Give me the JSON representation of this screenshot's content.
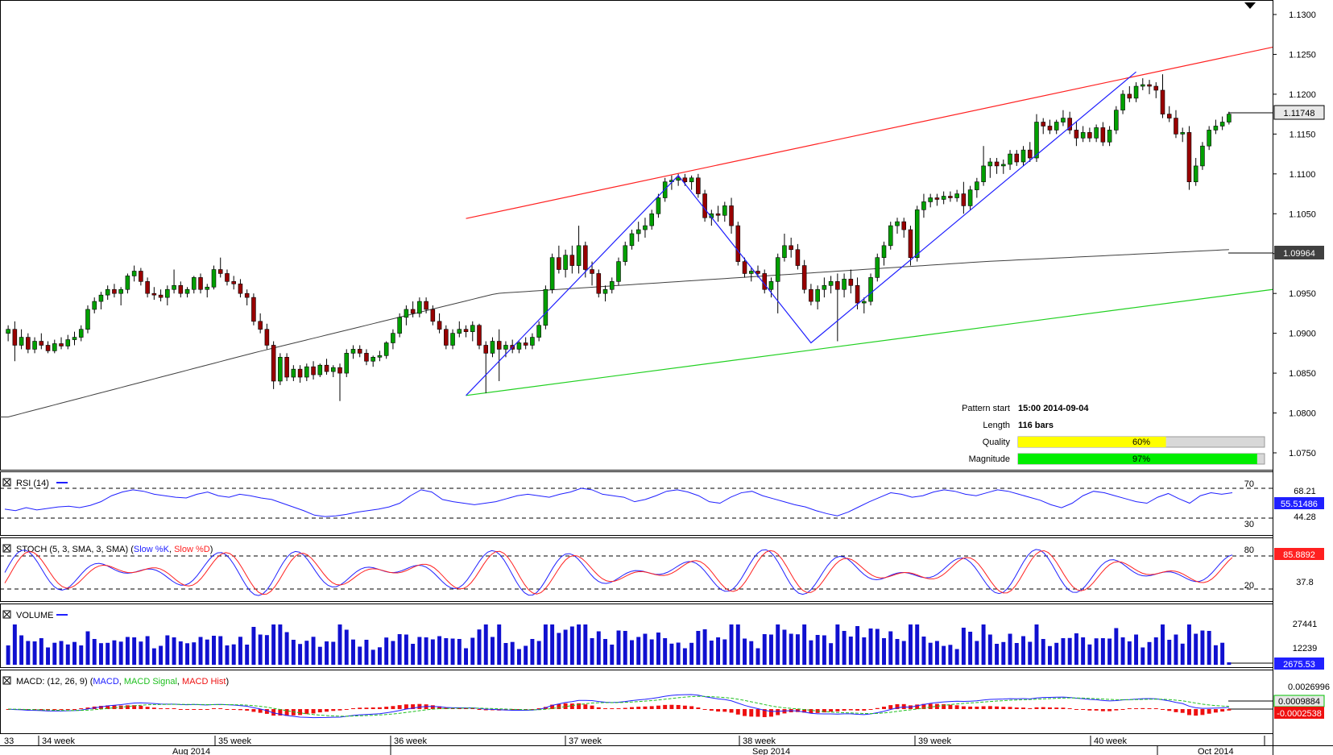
{
  "colors": {
    "bull": "#00a000",
    "bear": "#990000",
    "channel_top": "#ff2020",
    "channel_bottom": "#20d020",
    "zigzag": "#2020ff",
    "ma": "#404040",
    "rsi": "#2020ff",
    "stoch_k": "#2020ff",
    "stoch_d": "#ff2020",
    "volume": "#1010d0",
    "macd": "#2020ff",
    "macd_signal": "#20c020",
    "macd_hist": "#ee1010",
    "quality": "#ffff00",
    "magnitude": "#00ee00"
  },
  "price_axis": {
    "ticks": [
      "1.1300",
      "1.1250",
      "1.1200",
      "1.1150",
      "1.1100",
      "1.1050",
      "1.1000",
      "1.0950",
      "1.0900",
      "1.0850",
      "1.0800",
      "1.0750"
    ],
    "current_price": "1.11748",
    "ma_value": "1.09964"
  },
  "pattern_info": {
    "start_label": "Pattern start",
    "start_value": "15:00 2014-09-04",
    "length_label": "Length",
    "length_value": "116 bars",
    "quality_label": "Quality",
    "quality_value": "60%",
    "quality_fraction": 0.6,
    "magnitude_label": "Magnitude",
    "magnitude_value": "97%",
    "magnitude_fraction": 0.97
  },
  "rsi": {
    "title": "RSI (14)",
    "levels": [
      "70",
      "30"
    ],
    "ticks": [
      "68.21",
      "44.28"
    ],
    "current": "55.51486"
  },
  "stoch": {
    "title_main": "STOCH (5, 3, SMA, 3, SMA)",
    "title_k": "Slow %K",
    "title_d": "Slow %D",
    "levels": [
      "80",
      "20"
    ],
    "ticks": [
      "37.8"
    ],
    "current": "85.8892"
  },
  "volume": {
    "title": "VOLUME",
    "ticks": [
      "27441",
      "12239"
    ],
    "current": "2675.53"
  },
  "macd": {
    "title_main": "MACD: (12, 26, 9)",
    "title_macd": "MACD",
    "title_signal": "MACD Signal",
    "title_hist": "MACD Hist",
    "ticks": [
      "0.0026996"
    ],
    "current_macd": "0.0009884",
    "current_hist": "-0.0002538"
  },
  "time_axis": {
    "weeks": [
      "33",
      "34 week",
      "35 week",
      "36 week",
      "37 week",
      "38 week",
      "39 week",
      "40 week"
    ],
    "months": [
      "Aug 2014",
      "Sep 2014",
      "Oct 2014"
    ]
  },
  "chart_data": {
    "type": "candlestick",
    "symbol_timeframe_note": "",
    "y_range": [
      1.0715,
      1.1315
    ],
    "candles": [
      [
        1.09,
        1.091,
        1.089,
        1.0905
      ],
      [
        1.0905,
        1.0915,
        1.0865,
        1.0885
      ],
      [
        1.0885,
        1.0905,
        1.088,
        1.0895
      ],
      [
        1.0895,
        1.09,
        1.0875,
        1.088
      ],
      [
        1.088,
        1.0895,
        1.0875,
        1.089
      ],
      [
        1.089,
        1.09,
        1.088,
        1.0885
      ],
      [
        1.0885,
        1.089,
        1.0875,
        1.0878
      ],
      [
        1.0878,
        1.0892,
        1.0875,
        1.0887
      ],
      [
        1.0887,
        1.0895,
        1.088,
        1.0884
      ],
      [
        1.0884,
        1.0898,
        1.088,
        1.0892
      ],
      [
        1.0892,
        1.0902,
        1.0885,
        1.0895
      ],
      [
        1.0895,
        1.091,
        1.089,
        1.0905
      ],
      [
        1.0905,
        1.0935,
        1.09,
        1.093
      ],
      [
        1.093,
        1.0945,
        1.0925,
        1.094
      ],
      [
        1.094,
        1.0952,
        1.093,
        1.0948
      ],
      [
        1.0948,
        1.096,
        1.0942,
        1.0955
      ],
      [
        1.0955,
        1.0962,
        1.0945,
        1.095
      ],
      [
        1.095,
        1.0958,
        1.0935,
        1.0955
      ],
      [
        1.0955,
        1.0975,
        1.095,
        1.0972
      ],
      [
        1.0972,
        1.0985,
        1.0965,
        1.0978
      ],
      [
        1.0978,
        1.0982,
        1.096,
        1.0965
      ],
      [
        1.0965,
        1.097,
        1.0945,
        1.095
      ],
      [
        1.095,
        1.0958,
        1.0942,
        1.0948
      ],
      [
        1.0948,
        1.0955,
        1.094,
        1.0945
      ],
      [
        1.0945,
        1.096,
        1.0935,
        1.0955
      ],
      [
        1.0955,
        1.098,
        1.095,
        1.096
      ],
      [
        1.096,
        1.0965,
        1.0945,
        1.095
      ],
      [
        1.095,
        1.0958,
        1.0945,
        1.0955
      ],
      [
        1.0955,
        1.0972,
        1.095,
        1.097
      ],
      [
        1.097,
        1.0975,
        1.095,
        1.0955
      ],
      [
        1.0955,
        1.0962,
        1.0945,
        1.0958
      ],
      [
        1.0958,
        1.0985,
        1.0955,
        1.098
      ],
      [
        1.098,
        1.0995,
        1.097,
        1.0975
      ],
      [
        1.0975,
        1.098,
        1.096,
        1.0965
      ],
      [
        1.0965,
        1.0972,
        1.0955,
        1.0962
      ],
      [
        1.0962,
        1.0968,
        1.0945,
        1.095
      ],
      [
        1.095,
        1.0955,
        1.0935,
        1.0945
      ],
      [
        1.0945,
        1.095,
        1.091,
        1.0915
      ],
      [
        1.0915,
        1.0925,
        1.09,
        1.0905
      ],
      [
        1.0905,
        1.0912,
        1.088,
        1.0885
      ],
      [
        1.0885,
        1.089,
        1.083,
        1.084
      ],
      [
        1.084,
        1.0875,
        1.0835,
        1.087
      ],
      [
        1.087,
        1.0875,
        1.084,
        1.0845
      ],
      [
        1.0845,
        1.086,
        1.084,
        1.0855
      ],
      [
        1.0855,
        1.086,
        1.0838,
        1.0845
      ],
      [
        1.0845,
        1.0862,
        1.084,
        1.0858
      ],
      [
        1.0858,
        1.0865,
        1.0842,
        1.0848
      ],
      [
        1.0848,
        1.0862,
        1.0845,
        1.086
      ],
      [
        1.086,
        1.0868,
        1.0848,
        1.0852
      ],
      [
        1.0852,
        1.086,
        1.0845,
        1.0857
      ],
      [
        1.0857,
        1.0862,
        1.0815,
        1.085
      ],
      [
        1.085,
        1.088,
        1.0845,
        1.0875
      ],
      [
        1.0875,
        1.0885,
        1.0868,
        1.088
      ],
      [
        1.088,
        1.0885,
        1.087,
        1.0875
      ],
      [
        1.0875,
        1.088,
        1.086,
        1.0865
      ],
      [
        1.0865,
        1.0872,
        1.0858,
        1.087
      ],
      [
        1.087,
        1.0878,
        1.0865,
        1.0872
      ],
      [
        1.0872,
        1.089,
        1.0868,
        1.0888
      ],
      [
        1.0888,
        1.0905,
        1.088,
        1.09
      ],
      [
        1.09,
        1.0925,
        1.0895,
        1.092
      ],
      [
        1.092,
        1.0935,
        1.091,
        1.093
      ],
      [
        1.093,
        1.094,
        1.092,
        1.0925
      ],
      [
        1.0925,
        1.0945,
        1.092,
        1.094
      ],
      [
        1.094,
        1.0945,
        1.0925,
        1.093
      ],
      [
        1.093,
        1.0935,
        1.091,
        1.0915
      ],
      [
        1.0915,
        1.0925,
        1.09,
        1.0905
      ],
      [
        1.0905,
        1.091,
        1.088,
        1.0885
      ],
      [
        1.0885,
        1.0905,
        1.088,
        1.09
      ],
      [
        1.09,
        1.0915,
        1.0895,
        1.0905
      ],
      [
        1.0905,
        1.091,
        1.0895,
        1.0902
      ],
      [
        1.0902,
        1.0915,
        1.089,
        1.091
      ],
      [
        1.091,
        1.0912,
        1.088,
        1.0885
      ],
      [
        1.0885,
        1.089,
        1.0825,
        1.0875
      ],
      [
        1.0875,
        1.0895,
        1.087,
        1.089
      ],
      [
        1.089,
        1.0905,
        1.084,
        1.088
      ],
      [
        1.088,
        1.089,
        1.087,
        1.0885
      ],
      [
        1.0885,
        1.0892,
        1.0875,
        1.088
      ],
      [
        1.088,
        1.089,
        1.0875,
        1.0888
      ],
      [
        1.0888,
        1.0895,
        1.088,
        1.0885
      ],
      [
        1.0885,
        1.09,
        1.088,
        1.0895
      ],
      [
        1.0895,
        1.0915,
        1.089,
        1.091
      ],
      [
        1.091,
        1.096,
        1.0905,
        1.0955
      ],
      [
        1.0955,
        1.1,
        1.095,
        1.0995
      ],
      [
        1.0995,
        1.101,
        1.0975,
        1.098
      ],
      [
        1.098,
        1.1005,
        1.097,
        1.0998
      ],
      [
        1.0998,
        1.101,
        1.0975,
        1.0985
      ],
      [
        1.0985,
        1.1035,
        1.0975,
        1.101
      ],
      [
        1.101,
        1.1015,
        1.097,
        1.098
      ],
      [
        1.098,
        1.099,
        1.096,
        1.0975
      ],
      [
        1.0975,
        1.098,
        1.0945,
        1.095
      ],
      [
        1.095,
        1.096,
        1.094,
        1.0955
      ],
      [
        1.0955,
        1.097,
        1.095,
        1.0965
      ],
      [
        1.0965,
        1.0995,
        1.096,
        1.099
      ],
      [
        1.099,
        1.1015,
        1.0985,
        1.101
      ],
      [
        1.101,
        1.103,
        1.1005,
        1.1025
      ],
      [
        1.1025,
        1.104,
        1.1015,
        1.103
      ],
      [
        1.103,
        1.1045,
        1.102,
        1.1035
      ],
      [
        1.1035,
        1.1055,
        1.103,
        1.105
      ],
      [
        1.105,
        1.1075,
        1.1045,
        1.107
      ],
      [
        1.107,
        1.1095,
        1.1065,
        1.109
      ],
      [
        1.109,
        1.1098,
        1.108,
        1.1092
      ],
      [
        1.1092,
        1.11,
        1.1085,
        1.1095
      ],
      [
        1.1095,
        1.11,
        1.1085,
        1.109
      ],
      [
        1.109,
        1.1098,
        1.108,
        1.1095
      ],
      [
        1.1095,
        1.11,
        1.107,
        1.1075
      ],
      [
        1.1075,
        1.108,
        1.104,
        1.1045
      ],
      [
        1.1045,
        1.1055,
        1.1035,
        1.105
      ],
      [
        1.105,
        1.106,
        1.104,
        1.1048
      ],
      [
        1.1048,
        1.1065,
        1.104,
        1.106
      ],
      [
        1.106,
        1.107,
        1.1025,
        1.1035
      ],
      [
        1.1035,
        1.104,
        1.0985,
        1.099
      ],
      [
        1.099,
        1.0995,
        1.097,
        1.0975
      ],
      [
        1.0975,
        1.0982,
        1.0965,
        1.0978
      ],
      [
        1.0978,
        1.0985,
        1.097,
        1.0975
      ],
      [
        1.0975,
        1.098,
        1.095,
        1.0955
      ],
      [
        1.0955,
        1.097,
        1.0945,
        1.0965
      ],
      [
        1.0965,
        1.1,
        1.0925,
        1.0995
      ],
      [
        1.0995,
        1.1025,
        1.099,
        1.101
      ],
      [
        1.101,
        1.102,
        1.0995,
        1.1005
      ],
      [
        1.1005,
        1.1012,
        1.098,
        1.0985
      ],
      [
        1.0985,
        1.0992,
        1.095,
        1.0955
      ],
      [
        1.0955,
        1.0962,
        1.0935,
        1.094
      ],
      [
        1.094,
        1.096,
        1.093,
        1.0955
      ],
      [
        1.0955,
        1.097,
        1.0945,
        1.096
      ],
      [
        1.096,
        1.0972,
        1.095,
        1.0965
      ],
      [
        1.0965,
        1.0975,
        1.089,
        1.0955
      ],
      [
        1.0955,
        1.0975,
        1.0945,
        1.0968
      ],
      [
        1.0968,
        1.098,
        1.095,
        1.096
      ],
      [
        1.096,
        1.097,
        1.093,
        1.0938
      ],
      [
        1.0938,
        1.0945,
        1.0925,
        1.094
      ],
      [
        1.094,
        1.0975,
        1.0935,
        1.097
      ],
      [
        1.097,
        1.1,
        1.0965,
        1.0995
      ],
      [
        1.0995,
        1.1015,
        1.0985,
        1.101
      ],
      [
        1.101,
        1.104,
        1.1005,
        1.1035
      ],
      [
        1.1035,
        1.1045,
        1.1025,
        1.104
      ],
      [
        1.104,
        1.1045,
        1.102,
        1.103
      ],
      [
        1.103,
        1.1035,
        1.0985,
        1.0995
      ],
      [
        1.0995,
        1.106,
        1.099,
        1.1055
      ],
      [
        1.1055,
        1.1075,
        1.1045,
        1.1065
      ],
      [
        1.1065,
        1.1075,
        1.1058,
        1.107
      ],
      [
        1.107,
        1.1075,
        1.106,
        1.1068
      ],
      [
        1.1068,
        1.1078,
        1.1062,
        1.1072
      ],
      [
        1.1072,
        1.1078,
        1.1065,
        1.107
      ],
      [
        1.107,
        1.108,
        1.1065,
        1.1075
      ],
      [
        1.1075,
        1.109,
        1.105,
        1.106
      ],
      [
        1.106,
        1.1085,
        1.1055,
        1.108
      ],
      [
        1.108,
        1.1095,
        1.107,
        1.109
      ],
      [
        1.109,
        1.1135,
        1.1085,
        1.111
      ],
      [
        1.111,
        1.112,
        1.1095,
        1.1115
      ],
      [
        1.1115,
        1.112,
        1.11,
        1.111
      ],
      [
        1.111,
        1.1118,
        1.11,
        1.1112
      ],
      [
        1.1112,
        1.113,
        1.1105,
        1.1125
      ],
      [
        1.1125,
        1.113,
        1.111,
        1.1115
      ],
      [
        1.1115,
        1.1135,
        1.111,
        1.113
      ],
      [
        1.113,
        1.114,
        1.1115,
        1.112
      ],
      [
        1.112,
        1.1175,
        1.1115,
        1.1165
      ],
      [
        1.1165,
        1.117,
        1.115,
        1.116
      ],
      [
        1.116,
        1.1168,
        1.115,
        1.1155
      ],
      [
        1.1155,
        1.1168,
        1.115,
        1.1165
      ],
      [
        1.1165,
        1.118,
        1.116,
        1.117
      ],
      [
        1.117,
        1.1178,
        1.115,
        1.1155
      ],
      [
        1.1155,
        1.1165,
        1.1135,
        1.1145
      ],
      [
        1.1145,
        1.116,
        1.114,
        1.1152
      ],
      [
        1.1152,
        1.1158,
        1.114,
        1.1145
      ],
      [
        1.1145,
        1.1162,
        1.114,
        1.1158
      ],
      [
        1.1158,
        1.1165,
        1.1135,
        1.114
      ],
      [
        1.114,
        1.116,
        1.1135,
        1.1155
      ],
      [
        1.1155,
        1.1185,
        1.115,
        1.118
      ],
      [
        1.118,
        1.1205,
        1.1175,
        1.12
      ],
      [
        1.12,
        1.121,
        1.119,
        1.1195
      ],
      [
        1.1195,
        1.1215,
        1.119,
        1.121
      ],
      [
        1.121,
        1.122,
        1.1205,
        1.1212
      ],
      [
        1.1212,
        1.1218,
        1.12,
        1.121
      ],
      [
        1.121,
        1.1215,
        1.1195,
        1.1205
      ],
      [
        1.1205,
        1.1225,
        1.117,
        1.1175
      ],
      [
        1.1175,
        1.1185,
        1.1165,
        1.117
      ],
      [
        1.117,
        1.118,
        1.1145,
        1.115
      ],
      [
        1.115,
        1.1158,
        1.114,
        1.1152
      ],
      [
        1.1152,
        1.116,
        1.108,
        1.109
      ],
      [
        1.109,
        1.112,
        1.1085,
        1.111
      ],
      [
        1.111,
        1.114,
        1.1105,
        1.1135
      ],
      [
        1.1135,
        1.116,
        1.113,
        1.1155
      ],
      [
        1.1155,
        1.1168,
        1.115,
        1.116
      ],
      [
        1.116,
        1.1172,
        1.1155,
        1.1165
      ],
      [
        1.1165,
        1.1178,
        1.1162,
        1.1175
      ]
    ],
    "channel": {
      "upper_start": [
        1.1044,
        1.1259
      ],
      "lower": [
        1.0822,
        1.0955
      ]
    },
    "moving_average": [
      1.0795,
      1.0875,
      1.095,
      1.097,
      1.099,
      1.1005
    ],
    "zigzag_prices": [
      1.0822,
      1.1098,
      1.0888,
      1.1228
    ],
    "rsi_values": [
      42,
      40,
      44,
      41,
      43,
      45,
      46,
      44,
      47,
      52,
      60,
      65,
      68,
      66,
      62,
      60,
      58,
      57,
      62,
      65,
      60,
      58,
      62,
      60,
      57,
      55,
      50,
      45,
      40,
      34,
      32,
      33,
      35,
      38,
      40,
      42,
      45,
      50,
      60,
      68,
      65,
      55,
      52,
      50,
      48,
      50,
      52,
      56,
      60,
      62,
      60,
      58,
      62,
      65,
      70,
      68,
      62,
      60,
      58,
      52,
      55,
      60,
      66,
      68,
      65,
      60,
      52,
      50,
      58,
      64,
      66,
      60,
      56,
      52,
      48,
      45,
      40,
      36,
      33,
      38,
      45,
      52,
      58,
      64,
      62,
      58,
      60,
      65,
      68,
      66,
      62,
      60,
      64,
      68,
      66,
      62,
      58,
      54,
      48,
      44,
      50,
      60,
      66,
      64,
      60,
      56,
      52,
      50,
      58,
      63,
      56,
      50,
      60,
      64,
      62,
      64
    ]
  }
}
